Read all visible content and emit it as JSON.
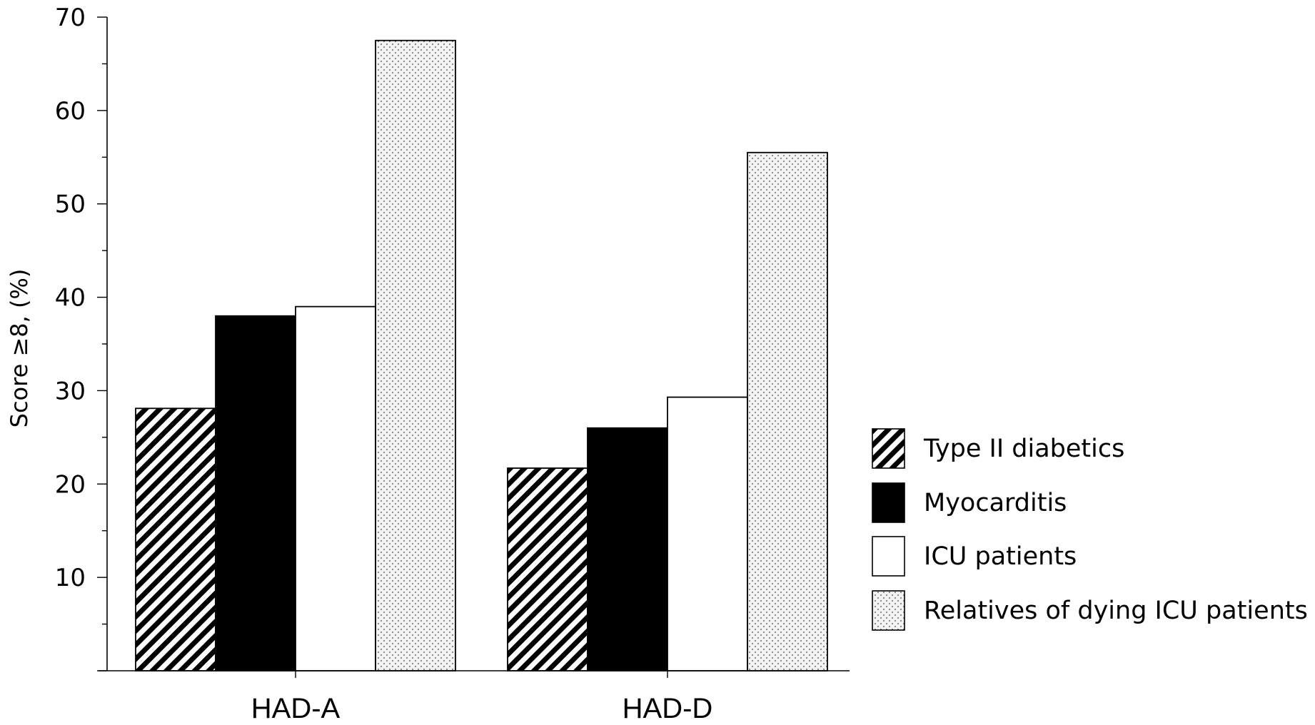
{
  "colors": {
    "bar_stroke": "#000000",
    "background": "#ffffff",
    "myocarditis_fill": "#000000",
    "icu_fill": "#ffffff",
    "stipple_base": "#f2f2f2",
    "stipple_dot": "#444444"
  },
  "chart_data": {
    "type": "bar",
    "title": "",
    "xlabel": "",
    "ylabel": "Score ≥8, (%)",
    "ylim": [
      0,
      70
    ],
    "yticks": [
      10,
      20,
      30,
      40,
      50,
      60,
      70
    ],
    "grid": false,
    "legend_position": "right",
    "categories": [
      "HAD-A",
      "HAD-D"
    ],
    "series": [
      {
        "name": "Type II diabetics",
        "pattern": "hatch",
        "values": [
          28.1,
          21.7
        ]
      },
      {
        "name": "Myocarditis",
        "pattern": "solid-black",
        "values": [
          38.0,
          26.0
        ]
      },
      {
        "name": "ICU patients",
        "pattern": "white",
        "values": [
          39.0,
          29.3
        ]
      },
      {
        "name": "Relatives of dying ICU patients",
        "pattern": "stipple",
        "values": [
          67.5,
          55.5
        ]
      }
    ]
  }
}
